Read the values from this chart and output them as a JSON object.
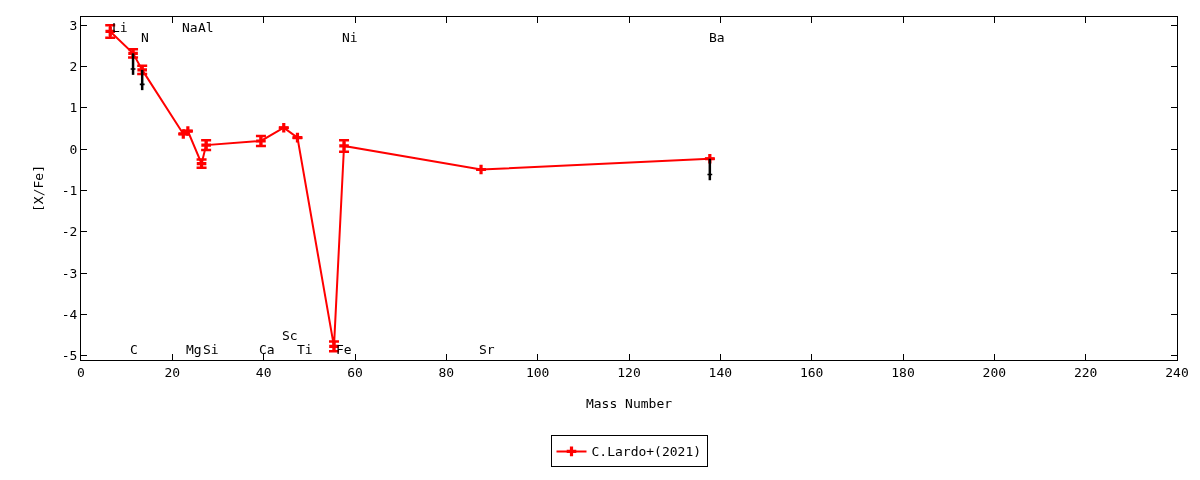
{
  "chart_data": {
    "type": "line",
    "xlabel": "Mass Number",
    "ylabel": "[X/Fe]",
    "xlim": [
      0,
      240
    ],
    "xticks": [
      0,
      20,
      40,
      60,
      80,
      100,
      120,
      140,
      160,
      180,
      200,
      220,
      240
    ],
    "ylim": [
      -5.1,
      3.2
    ],
    "yticks": [
      -5,
      -4,
      -3,
      -2,
      -1,
      0,
      1,
      2,
      3
    ],
    "grid": false,
    "legend": "bottom",
    "marker": "cross",
    "line_style": "solid",
    "series": [
      {
        "name": "C.Lardo+(2021)",
        "color": "#ff0000",
        "x": [
          6.4,
          11.4,
          13.4,
          22.4,
          23.4,
          26.4,
          27.4,
          39.4,
          44.4,
          47.4,
          55.4,
          57.6,
          87.6,
          137.7
        ],
        "values": [
          2.85,
          2.32,
          1.92,
          0.37,
          0.44,
          -0.35,
          0.1,
          0.2,
          0.52,
          0.28,
          -4.77,
          0.08,
          -0.49,
          -0.23
        ],
        "errors": [
          0.15,
          0.1,
          0.1,
          null,
          null,
          0.1,
          0.12,
          0.12,
          null,
          null,
          0.12,
          0.14,
          null,
          null
        ]
      },
      {
        "type": "scatter",
        "color": "#000000",
        "x": [
          11.4,
          13.4,
          137.7
        ],
        "values": [
          1.94,
          1.57,
          -0.61
        ],
        "errors": [
          [
            1.8,
            2.32
          ],
          [
            1.43,
            1.92
          ],
          [
            -0.75,
            -0.23
          ]
        ]
      }
    ],
    "annotations": [
      "Li",
      "N",
      "Na",
      "Al",
      "Ni",
      "Ba",
      "C",
      "Mg",
      "Si",
      "Ca",
      "Sc",
      "Ti",
      "Fe",
      "Sr"
    ]
  }
}
